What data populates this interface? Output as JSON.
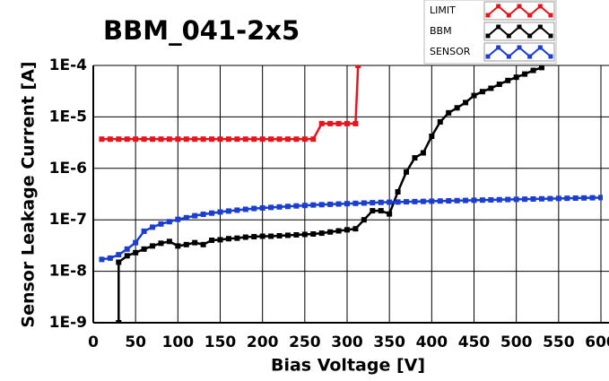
{
  "chart_data": {
    "type": "line",
    "title": "BBM_041-2x5",
    "x_label": "Bias Voltage [V]",
    "y_label": "Sensor Leakage Current [A]",
    "log_y": true,
    "grid": true,
    "legend": "top-right",
    "xlim": [
      0,
      600
    ],
    "xticks": [
      0,
      50,
      100,
      150,
      200,
      250,
      300,
      350,
      400,
      450,
      500,
      550,
      600
    ],
    "ylim": [
      1e-09,
      0.0001
    ],
    "yticks": [
      {
        "value": 1e-09,
        "label": "1E-9"
      },
      {
        "value": 1e-08,
        "label": "1E-8"
      },
      {
        "value": 1e-07,
        "label": "1E-7"
      },
      {
        "value": 1e-06,
        "label": "1E-6"
      },
      {
        "value": 1e-05,
        "label": "1E-5"
      },
      {
        "value": 0.0001,
        "label": "1E-4"
      }
    ],
    "series": [
      {
        "name": "LIMIT",
        "color": "#e8141c",
        "x": [
          10,
          20,
          30,
          40,
          50,
          60,
          70,
          80,
          90,
          100,
          110,
          120,
          130,
          140,
          150,
          160,
          170,
          180,
          190,
          200,
          210,
          220,
          230,
          240,
          250,
          260,
          270,
          280,
          290,
          300,
          310,
          313
        ],
        "values": [
          3.7e-06,
          3.7e-06,
          3.7e-06,
          3.7e-06,
          3.7e-06,
          3.7e-06,
          3.7e-06,
          3.7e-06,
          3.7e-06,
          3.7e-06,
          3.7e-06,
          3.7e-06,
          3.7e-06,
          3.7e-06,
          3.7e-06,
          3.7e-06,
          3.7e-06,
          3.7e-06,
          3.7e-06,
          3.7e-06,
          3.7e-06,
          3.7e-06,
          3.7e-06,
          3.7e-06,
          3.7e-06,
          3.7e-06,
          7.4e-06,
          7.4e-06,
          7.4e-06,
          7.4e-06,
          7.4e-06,
          0.0001
        ]
      },
      {
        "name": "BBM",
        "color": "#000000",
        "x": [
          30,
          30,
          40,
          50,
          60,
          70,
          80,
          90,
          100,
          110,
          120,
          130,
          140,
          150,
          160,
          170,
          180,
          190,
          200,
          210,
          220,
          230,
          240,
          250,
          260,
          270,
          280,
          290,
          300,
          310,
          320,
          330,
          340,
          350,
          360,
          370,
          380,
          390,
          400,
          410,
          420,
          430,
          440,
          450,
          460,
          470,
          480,
          490,
          500,
          510,
          520,
          530
        ],
        "values": [
          1e-09,
          1.5e-08,
          2e-08,
          2.3e-08,
          2.7e-08,
          3.1e-08,
          3.5e-08,
          3.8e-08,
          3.1e-08,
          3.3e-08,
          3.6e-08,
          3.3e-08,
          4e-08,
          4.1e-08,
          4.3e-08,
          4.4e-08,
          4.6e-08,
          4.7e-08,
          4.8e-08,
          4.8e-08,
          4.9e-08,
          5e-08,
          5.1e-08,
          5.2e-08,
          5.3e-08,
          5.5e-08,
          5.8e-08,
          6.1e-08,
          6.4e-08,
          6.7e-08,
          1e-07,
          1.5e-07,
          1.5e-07,
          1.3e-07,
          3.5e-07,
          8.5e-07,
          1.6e-06,
          2e-06,
          4.2e-06,
          8e-06,
          1.2e-05,
          1.5e-05,
          1.9e-05,
          2.6e-05,
          3.1e-05,
          3.6e-05,
          4.3e-05,
          5.1e-05,
          5.9e-05,
          6.8e-05,
          8e-05,
          9.1e-05
        ]
      },
      {
        "name": "SENSOR",
        "color": "#1a3fd0",
        "x": [
          10,
          20,
          30,
          40,
          50,
          60,
          70,
          80,
          90,
          100,
          110,
          120,
          130,
          140,
          150,
          160,
          170,
          180,
          190,
          200,
          210,
          220,
          230,
          240,
          250,
          260,
          270,
          280,
          290,
          300,
          310,
          320,
          330,
          340,
          350,
          360,
          370,
          380,
          390,
          400,
          410,
          420,
          430,
          440,
          450,
          460,
          470,
          480,
          490,
          500,
          510,
          520,
          530,
          540,
          550,
          560,
          570,
          580,
          590,
          600
        ],
        "values": [
          1.7e-08,
          1.8e-08,
          2.1e-08,
          2.7e-08,
          3.6e-08,
          6e-08,
          7.2e-08,
          8.3e-08,
          9.2e-08,
          1.02e-07,
          1.1e-07,
          1.2e-07,
          1.28e-07,
          1.35e-07,
          1.42e-07,
          1.48e-07,
          1.54e-07,
          1.6e-07,
          1.66e-07,
          1.7e-07,
          1.74e-07,
          1.78e-07,
          1.82e-07,
          1.86e-07,
          1.9e-07,
          1.94e-07,
          1.97e-07,
          2e-07,
          2.03e-07,
          2.06e-07,
          2.09e-07,
          2.12e-07,
          2.15e-07,
          2.18e-07,
          2.2e-07,
          2.22e-07,
          2.24e-07,
          2.26e-07,
          2.28e-07,
          2.3e-07,
          2.32e-07,
          2.34e-07,
          2.36e-07,
          2.38e-07,
          2.4e-07,
          2.42e-07,
          2.44e-07,
          2.46e-07,
          2.48e-07,
          2.5e-07,
          2.52e-07,
          2.54e-07,
          2.56e-07,
          2.58e-07,
          2.6e-07,
          2.62e-07,
          2.64e-07,
          2.66e-07,
          2.68e-07,
          2.7e-07
        ]
      }
    ]
  }
}
